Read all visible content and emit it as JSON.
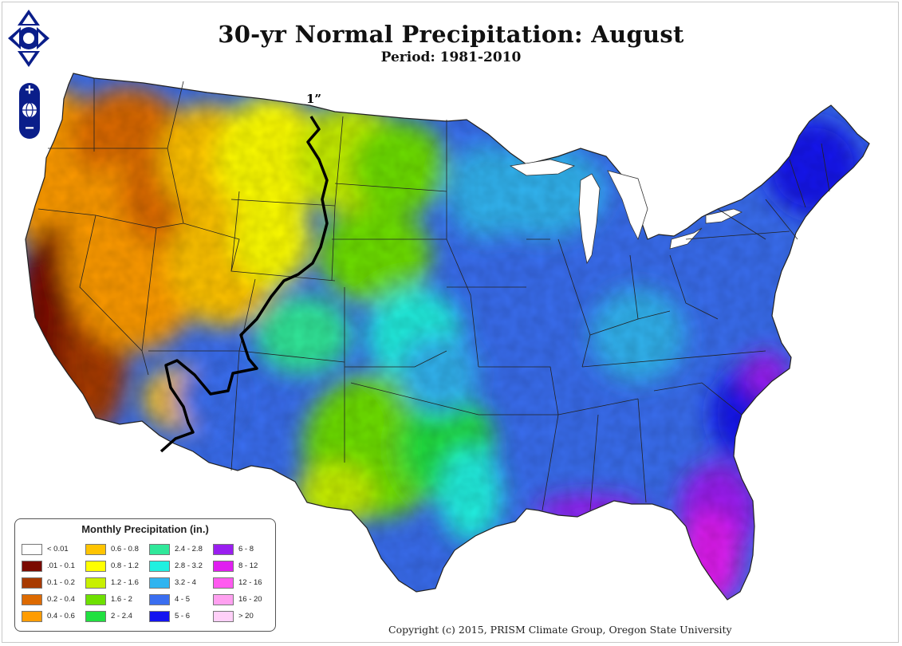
{
  "map": {
    "title": "30-yr Normal Precipitation: August",
    "subtitle": "Period: 1981-2010",
    "isoline_label": "1”",
    "copyright": "Copyright (c) 2015, PRISM Climate Group, Oregon State University",
    "controls": {
      "pan_icon": "pan-arrows-icon",
      "zoom_in_label": "+",
      "zoom_out_label": "−",
      "globe_icon": "globe-icon"
    }
  },
  "legend": {
    "title": "Monthly Precipitation (in.)",
    "items": [
      {
        "label": "< 0.01",
        "color": "#ffffff"
      },
      {
        "label": ".01 - 0.1",
        "color": "#7a0a00"
      },
      {
        "label": "0.1 - 0.2",
        "color": "#a83a00"
      },
      {
        "label": "0.2 - 0.4",
        "color": "#dd6a00"
      },
      {
        "label": "0.4 - 0.6",
        "color": "#ff9c00"
      },
      {
        "label": "0.6 - 0.8",
        "color": "#ffc400"
      },
      {
        "label": "0.8 - 1.2",
        "color": "#ffff00"
      },
      {
        "label": "1.2 - 1.6",
        "color": "#c8f000"
      },
      {
        "label": "1.6 - 2",
        "color": "#6ee000"
      },
      {
        "label": "2 - 2.4",
        "color": "#20e040"
      },
      {
        "label": "2.4 - 2.8",
        "color": "#30e89a"
      },
      {
        "label": "2.8 - 3.2",
        "color": "#20f0e0"
      },
      {
        "label": "3.2 - 4",
        "color": "#30b4f0"
      },
      {
        "label": "4 - 5",
        "color": "#3a6ef0"
      },
      {
        "label": "5 - 6",
        "color": "#1414f0"
      },
      {
        "label": "6 - 8",
        "color": "#9a1ef0"
      },
      {
        "label": "8 - 12",
        "color": "#e01ef0"
      },
      {
        "label": "12 - 16",
        "color": "#ff5af0"
      },
      {
        "label": "16 - 20",
        "color": "#ffa0f0"
      },
      {
        "label": "> 20",
        "color": "#ffd0f8"
      }
    ]
  }
}
